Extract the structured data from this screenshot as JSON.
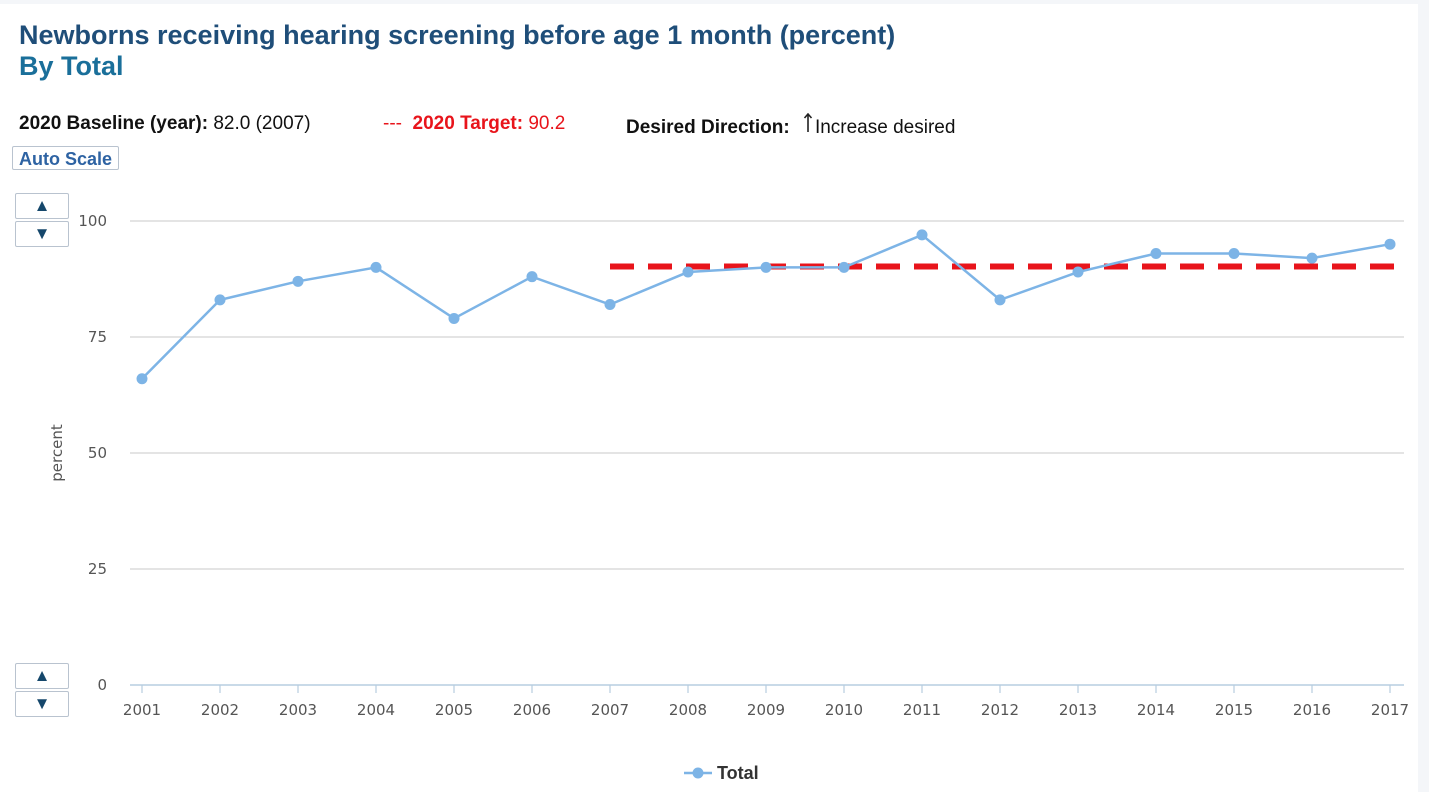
{
  "header": {
    "title": "Newborns receiving hearing screening before age 1 month (percent)",
    "subtitle": "By Total"
  },
  "info": {
    "baseline_label": "2020 Baseline (year):",
    "baseline_value": "82.0 (2007)",
    "target_prefix": "---",
    "target_label": "2020 Target:",
    "target_value": "90.2",
    "direction_label": "Desired Direction:",
    "direction_icon": "arrow-up-icon",
    "direction_value": "Increase desired"
  },
  "controls": {
    "auto_scale_label": "Auto Scale",
    "up_glyph": "▲",
    "down_glyph": "▼"
  },
  "colors": {
    "series": "#7db4e6",
    "target": "#e8141b",
    "grid": "#c8c8c8",
    "title": "#1f4e79",
    "subtitle": "#1a6f9a"
  },
  "chart_data": {
    "type": "line",
    "x": [
      "2001",
      "2002",
      "2003",
      "2004",
      "2005",
      "2006",
      "2007",
      "2008",
      "2009",
      "2010",
      "2011",
      "2012",
      "2013",
      "2014",
      "2015",
      "2016",
      "2017"
    ],
    "series": [
      {
        "name": "Total",
        "values": [
          66,
          83,
          87,
          90,
          79,
          88,
          82,
          89,
          90,
          90,
          97,
          83,
          89,
          93,
          93,
          92,
          95
        ]
      }
    ],
    "target": {
      "value": 90.2,
      "from": "2007",
      "to": "2017",
      "style": "dashed"
    },
    "ylabel": "percent",
    "xlabel": "",
    "ylim": [
      0,
      100
    ],
    "yticks": [
      0,
      25,
      50,
      75,
      100
    ],
    "grid": true,
    "legend": "bottom-center"
  }
}
